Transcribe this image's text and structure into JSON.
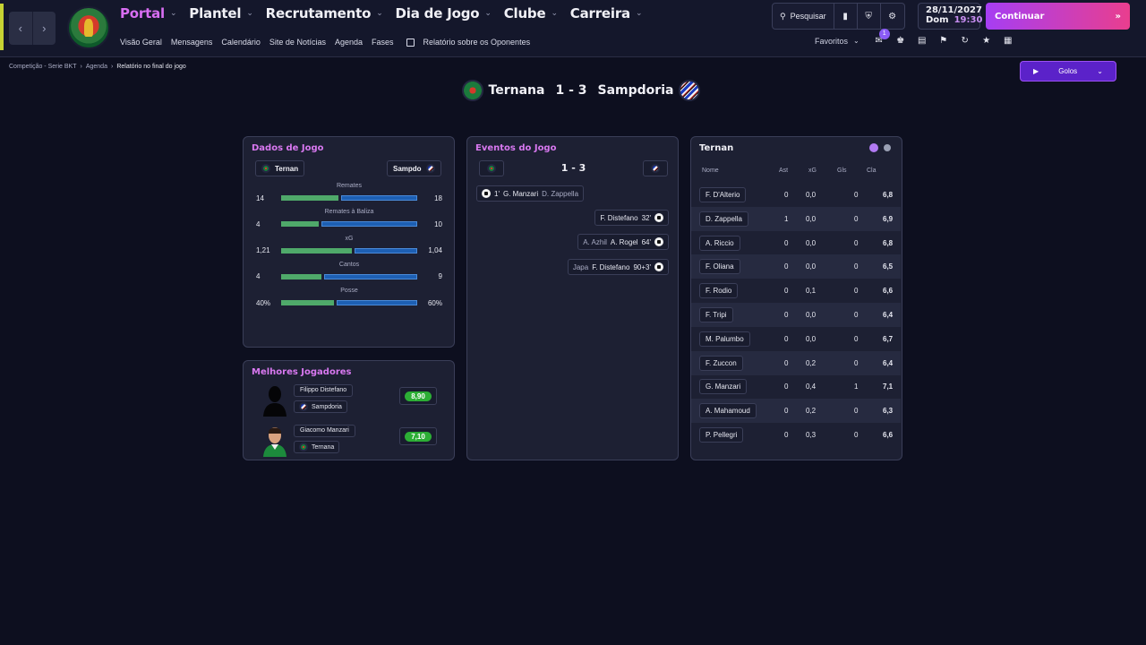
{
  "nav": {
    "main": [
      "Portal",
      "Plantel",
      "Recrutamento",
      "Dia de Jogo",
      "Clube",
      "Carreira"
    ],
    "sub": [
      "Visão Geral",
      "Mensagens",
      "Calendário",
      "Site de Notícias",
      "Agenda",
      "Fases",
      "Relatório sobre os Oponentes"
    ]
  },
  "toolbar": {
    "search_label": "Pesquisar",
    "continue_label": "Continuar",
    "favorites_label": "Favoritos",
    "notif_count": "1"
  },
  "date": {
    "date": "28/11/2027",
    "day": "Dom",
    "time": "19:30"
  },
  "breadcrumb": [
    "Competição - Serie BKT",
    "Agenda",
    "Relatório no final do jogo"
  ],
  "goals_button": "Golos",
  "match": {
    "home": "Ternana",
    "score": "1 - 3",
    "away": "Sampdoria"
  },
  "stats_panel": {
    "title": "Dados de Jogo",
    "home_chip": "Ternan",
    "away_chip": "Sampdo",
    "rows": [
      {
        "label": "Remates",
        "home": "14",
        "away": "18",
        "hv": 14,
        "av": 18
      },
      {
        "label": "Remates à Baliza",
        "home": "4",
        "away": "10",
        "hv": 4,
        "av": 10
      },
      {
        "label": "xG",
        "home": "1,21",
        "away": "1,04",
        "hv": 1.21,
        "av": 1.04
      },
      {
        "label": "Cantos",
        "home": "4",
        "away": "9",
        "hv": 4,
        "av": 9
      },
      {
        "label": "Posse",
        "home": "40%",
        "away": "60%",
        "hv": 40,
        "av": 60
      }
    ]
  },
  "best_players": {
    "title": "Melhores Jogadores",
    "players": [
      {
        "name": "Filippo Distefano",
        "team": "Sampdoria",
        "rating": "8,90"
      },
      {
        "name": "Giacomo Manzari",
        "team": "Ternana",
        "rating": "7,10"
      }
    ]
  },
  "events_panel": {
    "title": "Eventos do Jogo",
    "score": "1 - 3",
    "events": [
      {
        "side": "home",
        "minute": "1'",
        "scorer": "G. Manzari",
        "assist": "D. Zappella"
      },
      {
        "side": "away",
        "minute": "32'",
        "scorer": "F. Distefano",
        "assist": ""
      },
      {
        "side": "away",
        "minute": "64'",
        "scorer": "A. Rogel",
        "assist": "A. Azhil"
      },
      {
        "side": "away",
        "minute": "90+3'",
        "scorer": "F. Distefano",
        "assist": "Japa"
      }
    ]
  },
  "ratings_panel": {
    "title": "Ternan",
    "headers": {
      "name": "Nome",
      "ast": "Ast",
      "xg": "xG",
      "gls": "Gls",
      "cla": "Cla"
    },
    "rows": [
      {
        "name": "F. D'Alterio",
        "ast": "0",
        "xg": "0,0",
        "gls": "0",
        "cla": "6,8"
      },
      {
        "name": "D. Zappella",
        "ast": "1",
        "xg": "0,0",
        "gls": "0",
        "cla": "6,9"
      },
      {
        "name": "A. Riccio",
        "ast": "0",
        "xg": "0,0",
        "gls": "0",
        "cla": "6,8"
      },
      {
        "name": "F. Oliana",
        "ast": "0",
        "xg": "0,0",
        "gls": "0",
        "cla": "6,5"
      },
      {
        "name": "F. Rodio",
        "ast": "0",
        "xg": "0,1",
        "gls": "0",
        "cla": "6,6"
      },
      {
        "name": "F. Tripi",
        "ast": "0",
        "xg": "0,0",
        "gls": "0",
        "cla": "6,4"
      },
      {
        "name": "M. Palumbo",
        "ast": "0",
        "xg": "0,0",
        "gls": "0",
        "cla": "6,7"
      },
      {
        "name": "F. Zuccon",
        "ast": "0",
        "xg": "0,2",
        "gls": "0",
        "cla": "6,4"
      },
      {
        "name": "G. Manzari",
        "ast": "0",
        "xg": "0,4",
        "gls": "1",
        "cla": "7,1"
      },
      {
        "name": "A. Mahamoud",
        "ast": "0",
        "xg": "0,2",
        "gls": "0",
        "cla": "6,3"
      },
      {
        "name": "P. Pellegri",
        "ast": "0",
        "xg": "0,3",
        "gls": "0",
        "cla": "6,6"
      }
    ]
  },
  "colors": {
    "accent": "#d878f0",
    "home_bar": "#4fa96a",
    "away_bar": "#1d5fb3",
    "rating": "#2cae35"
  }
}
